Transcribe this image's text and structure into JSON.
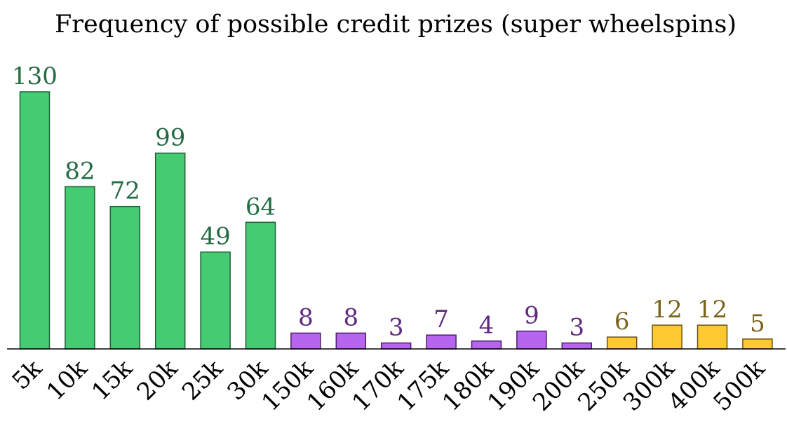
{
  "chart_data": {
    "type": "bar",
    "title": "Frequency of possible credit prizes (super wheelspins)",
    "xlabel": "",
    "ylabel": "",
    "ylim": [
      0,
      130
    ],
    "grid": false,
    "categories": [
      "5k",
      "10k",
      "15k",
      "20k",
      "25k",
      "30k",
      "150k",
      "160k",
      "170k",
      "175k",
      "180k",
      "190k",
      "200k",
      "250k",
      "300k",
      "400k",
      "500k"
    ],
    "values": [
      130,
      82,
      72,
      99,
      49,
      64,
      8,
      8,
      3,
      7,
      4,
      9,
      3,
      6,
      12,
      12,
      5
    ],
    "value_labels": [
      "130",
      "82",
      "72",
      "99",
      "49",
      "64",
      "8",
      "8",
      "3",
      "7",
      "4",
      "9",
      "3",
      "6",
      "12",
      "12",
      "5"
    ],
    "groups": [
      {
        "range": [
          0,
          5
        ],
        "fill": "#45cc72",
        "stroke": "#1f5e36",
        "label_color": "#236b42"
      },
      {
        "range": [
          6,
          12
        ],
        "fill": "#b765ee",
        "stroke": "#4a1f6b",
        "label_color": "#5e2a7e"
      },
      {
        "range": [
          13,
          16
        ],
        "fill": "#fdc931",
        "stroke": "#6b5214",
        "label_color": "#7a621c"
      }
    ]
  }
}
